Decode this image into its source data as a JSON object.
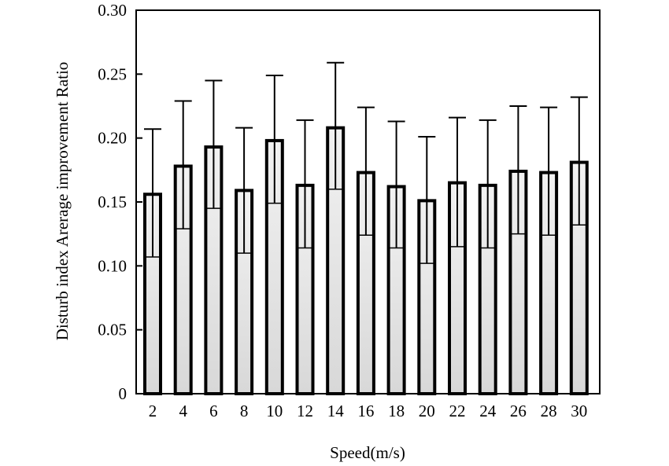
{
  "chart_data": {
    "type": "bar",
    "xlabel": "Speed(m/s)",
    "ylabel": "Disturb index Arerage improvement Ratio",
    "ylim": [
      0,
      0.3
    ],
    "y_ticks": [
      "0",
      "0.05",
      "0.10",
      "0.15",
      "0.20",
      "0.25",
      "0.30"
    ],
    "y_tick_values": [
      0,
      0.05,
      0.1,
      0.15,
      0.2,
      0.25,
      0.3
    ],
    "categories": [
      "2",
      "4",
      "6",
      "8",
      "10",
      "12",
      "14",
      "16",
      "18",
      "20",
      "22",
      "24",
      "26",
      "28",
      "30"
    ],
    "values": [
      0.156,
      0.178,
      0.193,
      0.159,
      0.198,
      0.163,
      0.208,
      0.173,
      0.162,
      0.151,
      0.165,
      0.163,
      0.174,
      0.173,
      0.181
    ],
    "error_upper": [
      0.207,
      0.229,
      0.245,
      0.208,
      0.249,
      0.214,
      0.259,
      0.224,
      0.213,
      0.201,
      0.216,
      0.214,
      0.225,
      0.224,
      0.232
    ],
    "error_lower": [
      0.107,
      0.129,
      0.145,
      0.11,
      0.149,
      0.114,
      0.16,
      0.124,
      0.114,
      0.102,
      0.115,
      0.114,
      0.125,
      0.124,
      0.132
    ],
    "grid": false,
    "legend": "none"
  }
}
